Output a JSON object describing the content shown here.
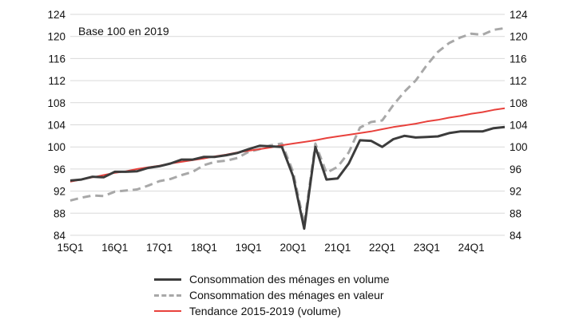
{
  "chart_data": {
    "type": "line",
    "annotation": "Base 100 en 2019",
    "ylim": [
      84,
      124
    ],
    "yticks": [
      84,
      88,
      92,
      96,
      100,
      104,
      108,
      112,
      116,
      120,
      124
    ],
    "x_tick_labels": [
      "15Q1",
      "16Q1",
      "17Q1",
      "18Q1",
      "19Q1",
      "20Q1",
      "21Q1",
      "22Q1",
      "23Q1",
      "24Q1"
    ],
    "x": [
      "15Q1",
      "15Q2",
      "15Q3",
      "15Q4",
      "16Q1",
      "16Q2",
      "16Q3",
      "16Q4",
      "17Q1",
      "17Q2",
      "17Q3",
      "17Q4",
      "18Q1",
      "18Q2",
      "18Q3",
      "18Q4",
      "19Q1",
      "19Q2",
      "19Q3",
      "19Q4",
      "20Q1",
      "20Q2",
      "20Q3",
      "20Q4",
      "21Q1",
      "21Q2",
      "21Q3",
      "21Q4",
      "22Q1",
      "22Q2",
      "22Q3",
      "22Q4",
      "23Q1",
      "23Q2",
      "23Q3",
      "23Q4",
      "24Q1",
      "24Q2",
      "24Q3",
      "24Q4"
    ],
    "grid": true,
    "legend_position": "bottom",
    "series": [
      {
        "name": "Consommation des ménages en volume",
        "color": "#3c3c3c",
        "style": "solid",
        "values": [
          93.9,
          94.1,
          94.6,
          94.5,
          95.5,
          95.5,
          95.6,
          96.2,
          96.5,
          97.0,
          97.7,
          97.7,
          98.2,
          98.2,
          98.5,
          98.9,
          99.6,
          100.2,
          100.1,
          100.0,
          94.7,
          85.2,
          100.0,
          94.1,
          94.3,
          97.0,
          101.2,
          101.1,
          100.0,
          101.4,
          102.0,
          101.7,
          101.8,
          101.9,
          102.5,
          102.8,
          102.8,
          102.8,
          103.4,
          103.6
        ]
      },
      {
        "name": "Consommation des ménages en valeur",
        "color": "#a8a8a8",
        "style": "dashed",
        "values": [
          90.3,
          90.8,
          91.2,
          91.1,
          91.9,
          92.1,
          92.3,
          93.0,
          93.8,
          94.2,
          94.9,
          95.5,
          96.7,
          97.3,
          97.5,
          98.0,
          99.1,
          99.6,
          100.3,
          100.6,
          95.5,
          86.0,
          100.6,
          95.3,
          96.4,
          99.0,
          103.5,
          104.5,
          104.8,
          107.6,
          110.0,
          112.0,
          114.8,
          117.2,
          118.8,
          119.8,
          120.5,
          120.3,
          121.2,
          121.5
        ]
      },
      {
        "name": "Tendance 2015-2019 (volume)",
        "color": "#e8413c",
        "style": "solid",
        "values": [
          93.7,
          94.1,
          94.5,
          94.9,
          95.3,
          95.6,
          96.0,
          96.3,
          96.6,
          97.0,
          97.3,
          97.6,
          97.9,
          98.3,
          98.6,
          99.0,
          99.3,
          99.6,
          99.9,
          100.3,
          100.6,
          100.9,
          101.2,
          101.6,
          101.9,
          102.2,
          102.5,
          102.8,
          103.2,
          103.6,
          103.9,
          104.2,
          104.6,
          104.9,
          105.3,
          105.6,
          106.0,
          106.3,
          106.7,
          107.0
        ]
      }
    ]
  }
}
